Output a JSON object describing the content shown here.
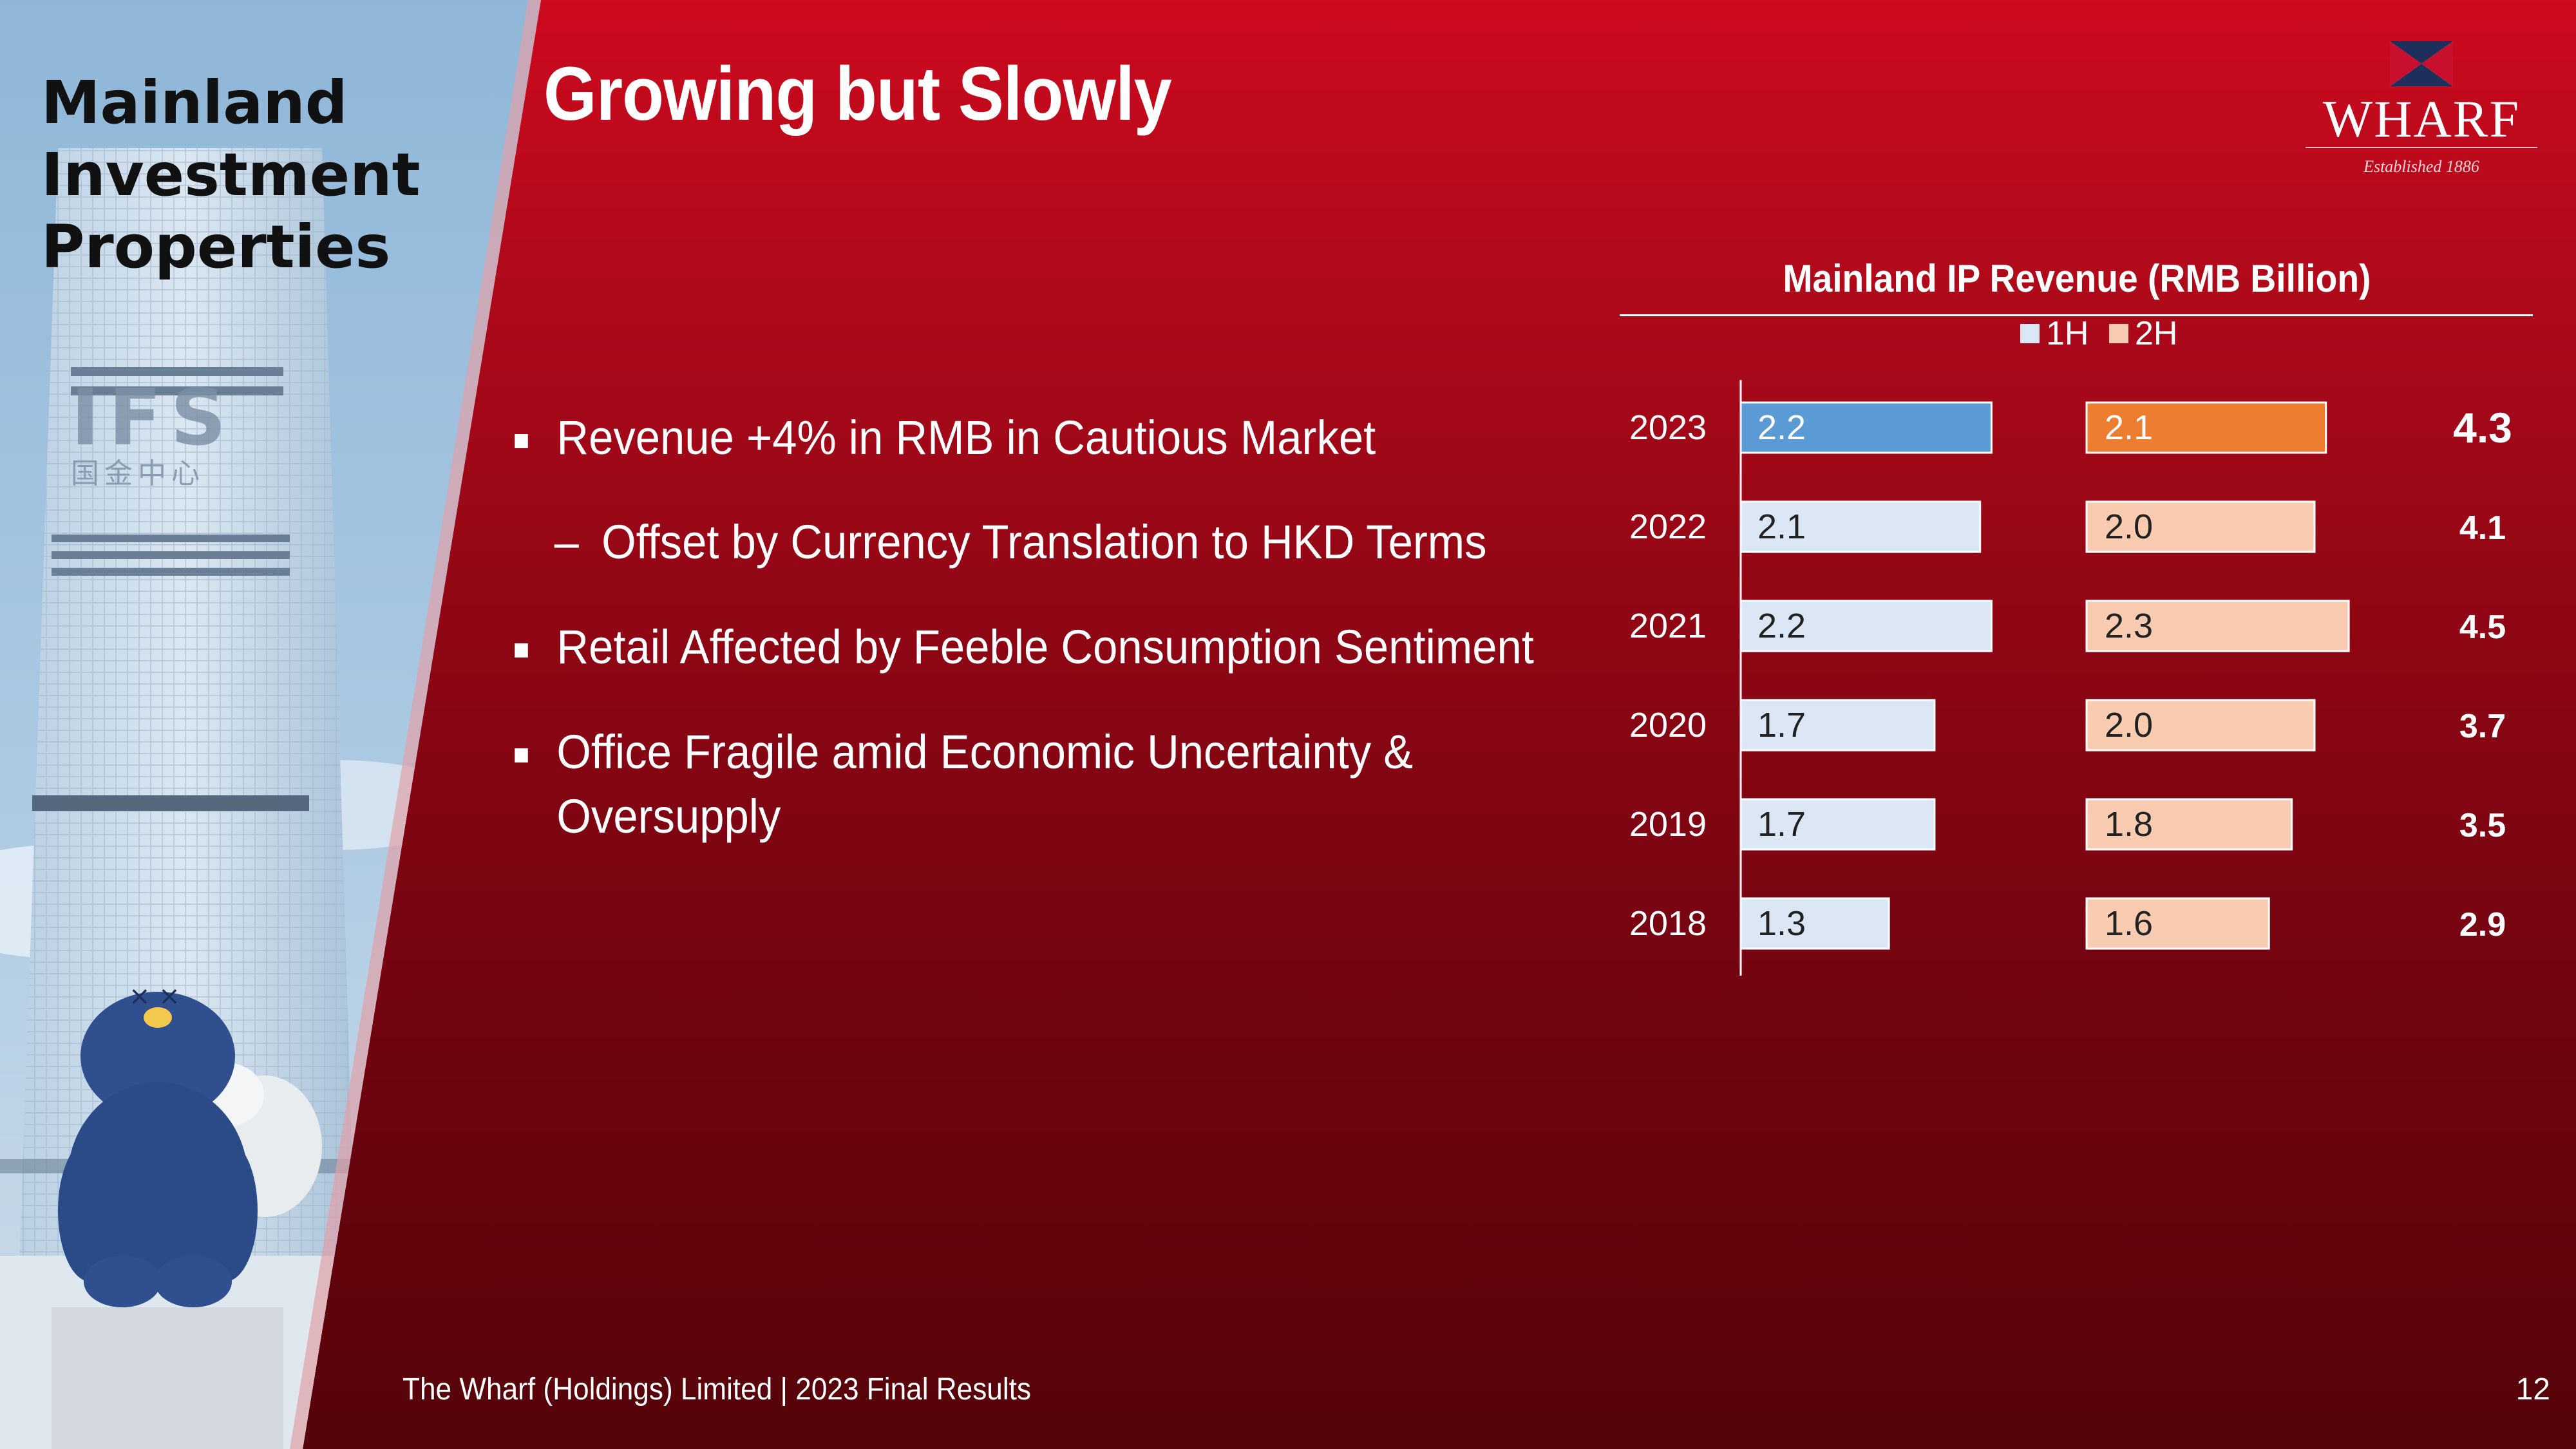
{
  "section_title": [
    "Mainland",
    "Investment",
    "Properties"
  ],
  "slide_title": "Growing but Slowly",
  "logo": {
    "word": "WHARF",
    "tagline": "Established 1886"
  },
  "bullets": [
    {
      "level": 1,
      "text": "Revenue +4% in RMB in Cautious Market"
    },
    {
      "level": 2,
      "text": "Offset by Currency Translation to HKD Terms"
    },
    {
      "level": 1,
      "text": "Retail Affected by Feeble Consumption Sentiment"
    },
    {
      "level": 1,
      "text": "Office Fragile amid Economic Uncertainty &",
      "text2": "Oversupply"
    }
  ],
  "chart_data": {
    "type": "bar",
    "orientation": "horizontal",
    "title": "Mainland IP Revenue (RMB Billion)",
    "legend_position": "top",
    "categories": [
      "2023",
      "2022",
      "2021",
      "2020",
      "2019",
      "2018"
    ],
    "series": [
      {
        "name": "1H",
        "values": [
          2.2,
          2.1,
          2.2,
          1.7,
          1.7,
          1.3
        ],
        "color": "#dbe7f5",
        "highlight_color": "#5b9bd5"
      },
      {
        "name": "2H",
        "values": [
          2.1,
          2.0,
          2.3,
          2.0,
          1.8,
          1.6
        ],
        "color": "#f9ccb1",
        "highlight_color": "#ed7d31"
      }
    ],
    "totals": [
      4.3,
      4.1,
      4.5,
      3.7,
      3.5,
      2.9
    ],
    "highlight_category": "2023",
    "value_labels": {
      "1H": [
        "2.2",
        "2.1",
        "2.2",
        "1.7",
        "1.7",
        "1.3"
      ],
      "2H": [
        "2.1",
        "2.0",
        "2.3",
        "2.0",
        "1.8",
        "1.6"
      ],
      "totals": [
        "4.3",
        "4.1",
        "4.5",
        "3.7",
        "3.5",
        "2.9"
      ]
    }
  },
  "footer": "The Wharf (Holdings) Limited | 2023 Final Results",
  "page_number": "12"
}
